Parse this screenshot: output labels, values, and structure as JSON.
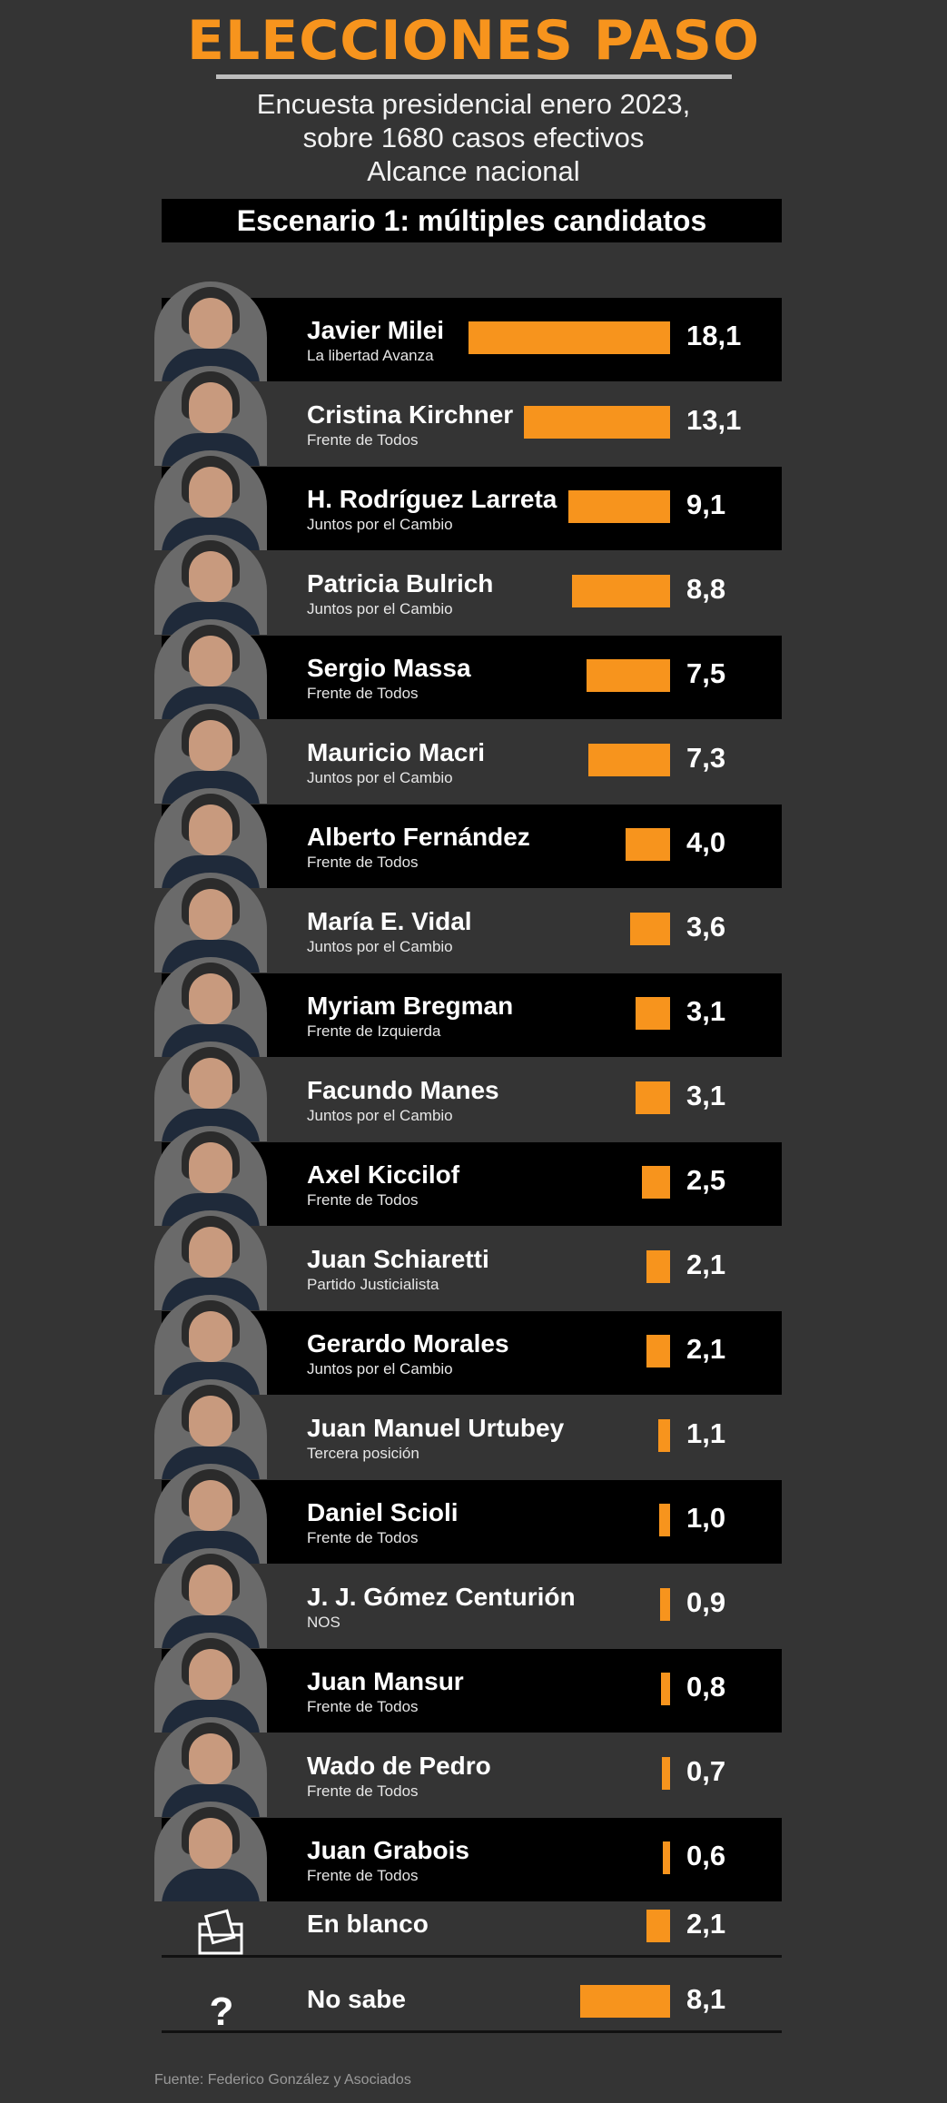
{
  "header": {
    "title": "ELECCIONES PASO",
    "subtitle_line1": "Encuesta presidencial enero 2023,",
    "subtitle_line2": "sobre 1680 casos efectivos",
    "subtitle_line3": "Alcance nacional",
    "scenario": "Escenario 1: múltiples candidatos"
  },
  "source": "Fuente: Federico González y Asociados",
  "colors": {
    "bar": "#f7941d",
    "background": "#343434",
    "dark_row": "#000000"
  },
  "chart_data": {
    "type": "bar",
    "orientation": "horizontal",
    "title": "Escenario 1: múltiples candidatos",
    "xlim": [
      0,
      18.1
    ],
    "rows": [
      {
        "name": "Javier Milei",
        "party": "La libertad Avanza",
        "value": 18.1,
        "label": "18,1",
        "dark": true,
        "icon": "photo"
      },
      {
        "name": "Cristina Kirchner",
        "party": "Frente de Todos",
        "value": 13.1,
        "label": "13,1",
        "dark": false,
        "icon": "photo"
      },
      {
        "name": "H. Rodríguez Larreta",
        "party": "Juntos por el Cambio",
        "value": 9.1,
        "label": "9,1",
        "dark": true,
        "icon": "photo"
      },
      {
        "name": "Patricia Bulrich",
        "party": "Juntos por el Cambio",
        "value": 8.8,
        "label": "8,8",
        "dark": false,
        "icon": "photo"
      },
      {
        "name": "Sergio Massa",
        "party": "Frente de Todos",
        "value": 7.5,
        "label": "7,5",
        "dark": true,
        "icon": "photo"
      },
      {
        "name": "Mauricio Macri",
        "party": "Juntos por el Cambio",
        "value": 7.3,
        "label": "7,3",
        "dark": false,
        "icon": "photo"
      },
      {
        "name": "Alberto Fernández",
        "party": "Frente de Todos",
        "value": 4.0,
        "label": "4,0",
        "dark": true,
        "icon": "photo"
      },
      {
        "name": "María E. Vidal",
        "party": "Juntos por el Cambio",
        "value": 3.6,
        "label": "3,6",
        "dark": false,
        "icon": "photo"
      },
      {
        "name": "Myriam Bregman",
        "party": "Frente de Izquierda",
        "value": 3.1,
        "label": "3,1",
        "dark": true,
        "icon": "photo"
      },
      {
        "name": "Facundo Manes",
        "party": "Juntos por el Cambio",
        "value": 3.1,
        "label": "3,1",
        "dark": false,
        "icon": "photo"
      },
      {
        "name": "Axel Kiccilof",
        "party": "Frente de Todos",
        "value": 2.5,
        "label": "2,5",
        "dark": true,
        "icon": "photo"
      },
      {
        "name": "Juan Schiaretti",
        "party": "Partido Justicialista",
        "value": 2.1,
        "label": "2,1",
        "dark": false,
        "icon": "photo"
      },
      {
        "name": "Gerardo Morales",
        "party": "Juntos por el Cambio",
        "value": 2.1,
        "label": "2,1",
        "dark": true,
        "icon": "photo"
      },
      {
        "name": "Juan Manuel Urtubey",
        "party": "Tercera posición",
        "value": 1.1,
        "label": "1,1",
        "dark": false,
        "icon": "photo"
      },
      {
        "name": "Daniel Scioli",
        "party": "Frente de Todos",
        "value": 1.0,
        "label": "1,0",
        "dark": true,
        "icon": "photo"
      },
      {
        "name": "J. J. Gómez Centurión",
        "party": "NOS",
        "value": 0.9,
        "label": "0,9",
        "dark": false,
        "icon": "photo"
      },
      {
        "name": "Juan Mansur",
        "party": "Frente de Todos",
        "value": 0.8,
        "label": "0,8",
        "dark": true,
        "icon": "photo"
      },
      {
        "name": "Wado de Pedro",
        "party": "Frente de Todos",
        "value": 0.7,
        "label": "0,7",
        "dark": false,
        "icon": "photo"
      },
      {
        "name": "Juan Grabois",
        "party": "Frente de Todos",
        "value": 0.6,
        "label": "0,6",
        "dark": true,
        "icon": "photo"
      },
      {
        "name": "En blanco",
        "party": "",
        "value": 2.1,
        "label": "2,1",
        "dark": false,
        "icon": "ballot-box-icon"
      },
      {
        "name": "No sabe",
        "party": "",
        "value": 8.1,
        "label": "8,1",
        "dark": false,
        "icon": "question-mark-icon"
      }
    ]
  }
}
